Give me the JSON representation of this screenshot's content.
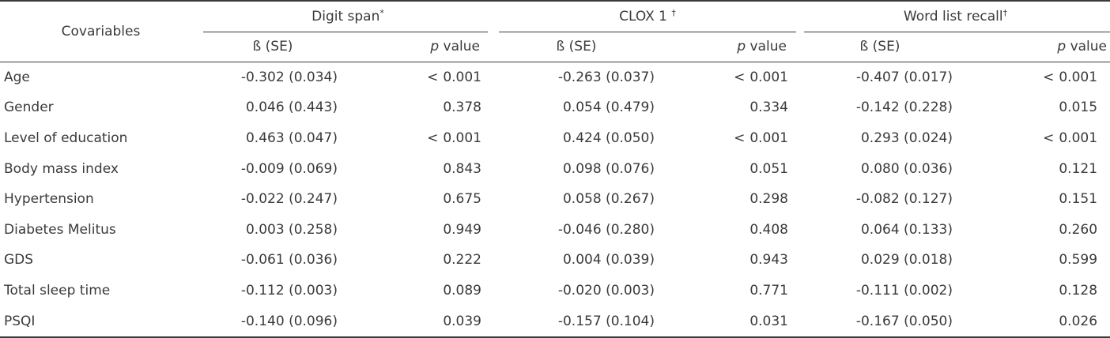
{
  "table": {
    "covariables_label": "Covariables",
    "groups": [
      {
        "name": "Digit span",
        "mark": "*"
      },
      {
        "name": "CLOX 1",
        "mark": "†"
      },
      {
        "name": "Word list recall",
        "mark": "†"
      }
    ],
    "subheaders": {
      "beta": "ß (SE)",
      "p_italic": "p",
      "p_rest": " value"
    },
    "rows": [
      {
        "label": "Age",
        "cells": [
          {
            "beta": "-0.302 (0.034)",
            "p": "0.001",
            "lt": "<"
          },
          {
            "beta": "-0.263 (0.037)",
            "p": "0.001",
            "lt": "<"
          },
          {
            "beta": "-0.407 (0.017)",
            "p": "0.001",
            "lt": "<"
          }
        ]
      },
      {
        "label": "Gender",
        "cells": [
          {
            "beta": "0.046 (0.443)",
            "p": "0.378",
            "lt": ""
          },
          {
            "beta": "0.054 (0.479)",
            "p": "0.334",
            "lt": ""
          },
          {
            "beta": "-0.142 (0.228)",
            "p": "0.015",
            "lt": ""
          }
        ]
      },
      {
        "label": "Level of education",
        "cells": [
          {
            "beta": "0.463 (0.047)",
            "p": "0.001",
            "lt": "<"
          },
          {
            "beta": "0.424 (0.050)",
            "p": "0.001",
            "lt": "<"
          },
          {
            "beta": "0.293 (0.024)",
            "p": "0.001",
            "lt": "<"
          }
        ]
      },
      {
        "label": "Body mass index",
        "cells": [
          {
            "beta": "-0.009 (0.069)",
            "p": "0.843",
            "lt": ""
          },
          {
            "beta": "0.098 (0.076)",
            "p": "0.051",
            "lt": ""
          },
          {
            "beta": "0.080 (0.036)",
            "p": "0.121",
            "lt": ""
          }
        ]
      },
      {
        "label": "Hypertension",
        "cells": [
          {
            "beta": "-0.022 (0.247)",
            "p": "0.675",
            "lt": ""
          },
          {
            "beta": "0.058 (0.267)",
            "p": "0.298",
            "lt": ""
          },
          {
            "beta": "-0.082 (0.127)",
            "p": "0.151",
            "lt": ""
          }
        ]
      },
      {
        "label": "Diabetes Melitus",
        "cells": [
          {
            "beta": "0.003 (0.258)",
            "p": "0.949",
            "lt": ""
          },
          {
            "beta": "-0.046 (0.280)",
            "p": "0.408",
            "lt": ""
          },
          {
            "beta": "0.064 (0.133)",
            "p": "0.260",
            "lt": ""
          }
        ]
      },
      {
        "label": "GDS",
        "cells": [
          {
            "beta": "-0.061 (0.036)",
            "p": "0.222",
            "lt": ""
          },
          {
            "beta": "0.004 (0.039)",
            "p": "0.943",
            "lt": ""
          },
          {
            "beta": "0.029 (0.018)",
            "p": "0.599",
            "lt": ""
          }
        ]
      },
      {
        "label": "Total sleep time",
        "cells": [
          {
            "beta": "-0.112 (0.003)",
            "p": "0.089",
            "lt": ""
          },
          {
            "beta": "-0.020 (0.003)",
            "p": "0.771",
            "lt": ""
          },
          {
            "beta": "-0.111 (0.002)",
            "p": "0.128",
            "lt": ""
          }
        ]
      },
      {
        "label": "PSQI",
        "cells": [
          {
            "beta": "-0.140 (0.096)",
            "p": "0.039",
            "lt": ""
          },
          {
            "beta": "-0.157 (0.104)",
            "p": "0.031",
            "lt": ""
          },
          {
            "beta": "-0.167 (0.050)",
            "p": "0.026",
            "lt": ""
          }
        ]
      }
    ]
  }
}
